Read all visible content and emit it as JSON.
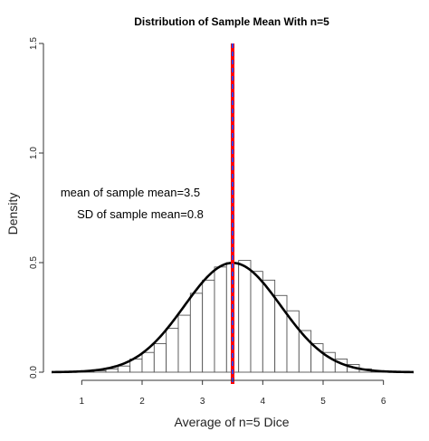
{
  "chart_data": {
    "type": "histogram",
    "title": "Distribution of Sample Mean With n=5",
    "xlabel": "Average of n=5 Dice",
    "ylabel": "Density",
    "xlim": [
      0.5,
      6.5
    ],
    "ylim": [
      0,
      1.5
    ],
    "x_ticks": [
      "1",
      "2",
      "3",
      "4",
      "5",
      "6"
    ],
    "y_ticks": [
      "0.0",
      "0.5",
      "1.0",
      "1.5"
    ],
    "bin_width": 0.2,
    "bins": [
      {
        "x0": 1.0,
        "x1": 1.2,
        "density": 0.002
      },
      {
        "x0": 1.2,
        "x1": 1.4,
        "density": 0.006
      },
      {
        "x0": 1.4,
        "x1": 1.6,
        "density": 0.015
      },
      {
        "x0": 1.6,
        "x1": 1.8,
        "density": 0.028
      },
      {
        "x0": 1.8,
        "x1": 2.0,
        "density": 0.06
      },
      {
        "x0": 2.0,
        "x1": 2.2,
        "density": 0.09
      },
      {
        "x0": 2.2,
        "x1": 2.4,
        "density": 0.13
      },
      {
        "x0": 2.4,
        "x1": 2.6,
        "density": 0.2
      },
      {
        "x0": 2.6,
        "x1": 2.8,
        "density": 0.26
      },
      {
        "x0": 2.8,
        "x1": 3.0,
        "density": 0.36
      },
      {
        "x0": 3.0,
        "x1": 3.2,
        "density": 0.42
      },
      {
        "x0": 3.2,
        "x1": 3.4,
        "density": 0.48
      },
      {
        "x0": 3.4,
        "x1": 3.6,
        "density": 0.5
      },
      {
        "x0": 3.6,
        "x1": 3.8,
        "density": 0.51
      },
      {
        "x0": 3.8,
        "x1": 4.0,
        "density": 0.46
      },
      {
        "x0": 4.0,
        "x1": 4.2,
        "density": 0.42
      },
      {
        "x0": 4.2,
        "x1": 4.4,
        "density": 0.35
      },
      {
        "x0": 4.4,
        "x1": 4.6,
        "density": 0.28
      },
      {
        "x0": 4.6,
        "x1": 4.8,
        "density": 0.19
      },
      {
        "x0": 4.8,
        "x1": 5.0,
        "density": 0.13
      },
      {
        "x0": 5.0,
        "x1": 5.2,
        "density": 0.09
      },
      {
        "x0": 5.2,
        "x1": 5.4,
        "density": 0.06
      },
      {
        "x0": 5.4,
        "x1": 5.6,
        "density": 0.035
      },
      {
        "x0": 5.6,
        "x1": 5.8,
        "density": 0.015
      },
      {
        "x0": 5.8,
        "x1": 6.0,
        "density": 0.004
      }
    ],
    "normal_curve": {
      "mean": 3.5,
      "sd": 0.8,
      "color": "#000000"
    },
    "vertical_line": {
      "x": 3.5,
      "colors": [
        "#ff0000",
        "#3344ff"
      ],
      "style": "red-blue dashed"
    },
    "annotations": [
      "mean of sample mean=3.5",
      "SD of sample mean=0.8"
    ],
    "grid": false
  }
}
